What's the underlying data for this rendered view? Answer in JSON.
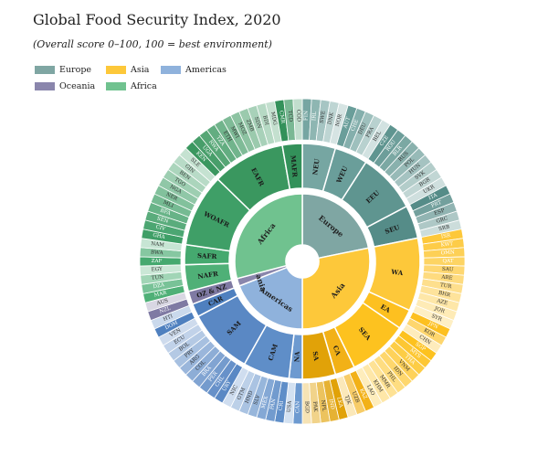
{
  "title": "Global Food Security Index, 2020",
  "subtitle": "(Overall score 0–100, 100 = best environment)",
  "legend": [
    {
      "name": "Europe",
      "color": "#7fa6a3"
    },
    {
      "name": "Asia",
      "color": "#fdc83a"
    },
    {
      "name": "Americas",
      "color": "#8fb2dc"
    },
    {
      "name": "Oceania",
      "color": "#8a86ac"
    },
    {
      "name": "Africa",
      "color": "#70c28f"
    }
  ],
  "chart_data": {
    "type": "sunburst",
    "title": "Global Food Security Index, 2020",
    "subtitle": "(Overall score 0–100, 100 = best environment)",
    "continents": [
      {
        "name": "Europe",
        "color": "#7fa6a3",
        "regions": [
          {
            "name": "NEU",
            "color": "#76a6a2",
            "countries": [
              "FIN",
              "IRL",
              "SWE",
              "DNK",
              "NOR"
            ]
          },
          {
            "name": "WEU",
            "color": "#6a9e9a",
            "countries": [
              "AUT",
              "CHE",
              "DEU",
              "FRA",
              "BEL"
            ]
          },
          {
            "name": "EEU",
            "color": "#5f9590",
            "countries": [
              "CZE",
              "ROU",
              "BLR",
              "RUS",
              "POL",
              "HUN",
              "SVK",
              "BGR",
              "UKR"
            ]
          },
          {
            "name": "SEU",
            "color": "#558c88",
            "countries": [
              "ITA",
              "PRT",
              "ESP",
              "GRC",
              "SRB"
            ]
          }
        ]
      },
      {
        "name": "Asia",
        "color": "#fdc83a",
        "regions": [
          {
            "name": "WA",
            "color": "#fdc83a",
            "countries": [
              "ISR",
              "KWT",
              "OMN",
              "QAT",
              "SAU",
              "ARE",
              "TUR",
              "BHR",
              "AZE",
              "JOR",
              "SYR"
            ]
          },
          {
            "name": "EA",
            "color": "#fdc020",
            "countries": [
              "JPN",
              "KOR",
              "CHN"
            ]
          },
          {
            "name": "SEA",
            "color": "#fdc21f",
            "countries": [
              "SGP",
              "MYS",
              "THA",
              "VNM",
              "IDN",
              "PHL",
              "MMR",
              "KHM",
              "LAO"
            ]
          },
          {
            "name": "CA",
            "color": "#f2b117",
            "countries": [
              "KAZ",
              "UZB",
              "TJK"
            ]
          },
          {
            "name": "SA",
            "color": "#e1a208",
            "countries": [
              "LKA",
              "IND",
              "NPL",
              "PAK",
              "BGD"
            ]
          }
        ]
      },
      {
        "name": "Americas",
        "color": "#8fb2dc",
        "regions": [
          {
            "name": "NA",
            "color": "#6d9ad0",
            "countries": [
              "CAN",
              "USA"
            ]
          },
          {
            "name": "CAM",
            "color": "#5f8ec8",
            "countries": [
              "CRI",
              "PAN",
              "MEX",
              "SLV",
              "HND",
              "GTM",
              "NIC"
            ]
          },
          {
            "name": "SAM",
            "color": "#5a88c4",
            "countries": [
              "URY",
              "CHL",
              "PER",
              "BRA",
              "COL",
              "ARG",
              "PRY",
              "BOL",
              "ECU",
              "VEN"
            ]
          },
          {
            "name": "CAR",
            "color": "#4f80bf",
            "countries": [
              "DOM",
              "HTI"
            ]
          }
        ]
      },
      {
        "name": "Oceania",
        "color": "#8a86ac",
        "regions": [
          {
            "name": "OZ & NZ",
            "color": "#7f7aa3",
            "countries": [
              "NZL",
              "AUS"
            ]
          }
        ]
      },
      {
        "name": "Africa",
        "color": "#70c28f",
        "regions": [
          {
            "name": "NAFR",
            "color": "#4fb077",
            "countries": [
              "MAR",
              "DZA",
              "TUN",
              "EGY"
            ]
          },
          {
            "name": "SAFR",
            "color": "#45a96f",
            "countries": [
              "ZAF",
              "BWA",
              "NAM"
            ]
          },
          {
            "name": "WOAFR",
            "color": "#3f9f67",
            "countries": [
              "GHA",
              "CIV",
              "SEN",
              "BFA",
              "MLI",
              "NER",
              "NGA",
              "TGO",
              "BEN",
              "GIN",
              "SLE"
            ]
          },
          {
            "name": "EAFR",
            "color": "#3a975f",
            "countries": [
              "KEN",
              "UGA",
              "RWA",
              "TZA",
              "ETH",
              "MWI",
              "MOZ",
              "ZMB",
              "SDN",
              "BDI",
              "MDG"
            ]
          },
          {
            "name": "MAFR",
            "color": "#33915a",
            "countries": [
              "CMR",
              "TCD",
              "COD"
            ]
          }
        ]
      }
    ]
  }
}
